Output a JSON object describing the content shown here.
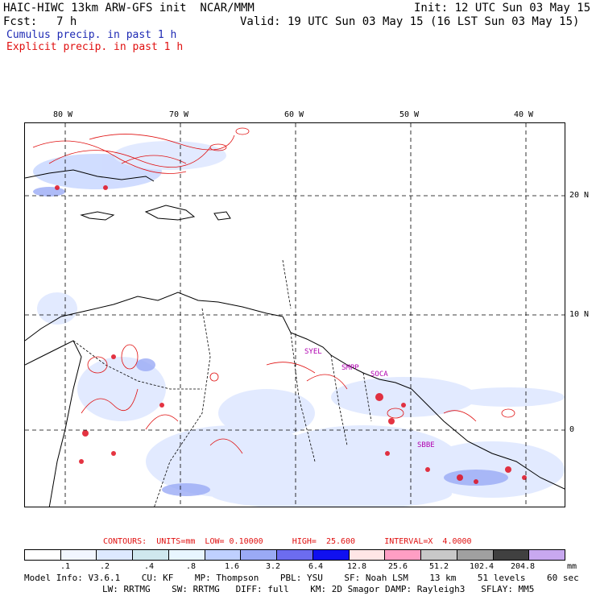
{
  "header": {
    "title": "HAIC-HIWC 13km ARW-GFS init  NCAR/MMM",
    "init": "Init: 12 UTC Sun 03 May 15",
    "fcst_label": "Fcst:",
    "fcst_value": "7 h",
    "valid": "Valid: 19 UTC Sun 03 May 15 (16 LST Sun 03 May 15)",
    "cumulus_label": "Cumulus precip. in past 1 h",
    "explicit_label": "Explicit precip. in past 1 h"
  },
  "map": {
    "lon_labels": [
      "80 W",
      "70 W",
      "60 W",
      "50 W",
      "40 W"
    ],
    "lat_labels": [
      "20 N",
      "10 N",
      "0"
    ],
    "stations": [
      "SYEL",
      "SMPP",
      "SOCA",
      "SBBE"
    ]
  },
  "colors": {
    "cumulus": "#1e2ab4",
    "explicit": "#e01010",
    "station": "#b000b0"
  },
  "contours": {
    "line": "CONTOURS:  UNITS=mm  LOW= 0.10000      HIGH=  25.600      INTERVAL=X  4.0000"
  },
  "scale": {
    "colors": [
      "#ffffff",
      "#f2f6ff",
      "#dde9ff",
      "#cfe8ee",
      "#e8f6ff",
      "#bfd0ff",
      "#9aaaf5",
      "#6c6cf0",
      "#1010f0",
      "#ffe6e6",
      "#ff9ec4",
      "#c8c8c8",
      "#a0a0a0",
      "#404040",
      "#c8a8f0"
    ],
    "labels": [
      ".1",
      ".2",
      ".4",
      ".8",
      "1.6",
      "3.2",
      "6.4",
      "12.8",
      "25.6",
      "51.2",
      "102.4",
      "204.8"
    ],
    "unit": "mm"
  },
  "model_info": {
    "line1": "Model Info: V3.6.1    CU: KF    MP: Thompson    PBL: YSU    SF: Noah LSM    13 km    51 levels    60 sec",
    "line2": "LW: RRTMG    SW: RRTMG   DIFF: full    KM: 2D Smagor DAMP: Rayleigh3   SFLAY: MM5"
  }
}
